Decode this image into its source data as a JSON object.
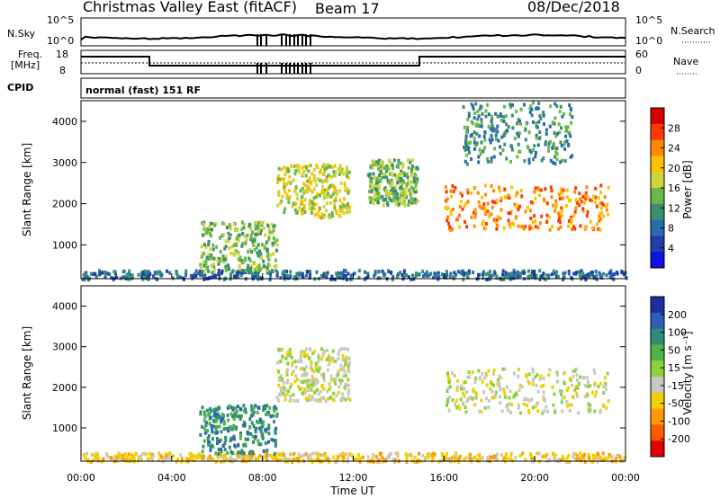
{
  "header": {
    "station": "Christmas Valley East (fitACF)",
    "beam": "Beam 17",
    "date": "08/Dec/2018"
  },
  "noise_panel": {
    "left_label": "N.Sky",
    "left_ticks": [
      "10^5",
      "10^0"
    ],
    "right_label": "N.Search",
    "right_ticks": [
      "10^5",
      "10^0"
    ]
  },
  "freq_panel": {
    "left_label_1": "Freq.",
    "left_label_2": "[MHz]",
    "left_ticks": [
      "18",
      "8"
    ],
    "right_label": "Nave",
    "right_ticks": [
      "60",
      "0"
    ]
  },
  "cpid": {
    "label": "CPID",
    "value": "normal (fast) 151 RF"
  },
  "chart_data": [
    {
      "type": "heatmap",
      "name": "power",
      "ylabel": "Slant Range [km]",
      "xlabel": "",
      "xlim": [
        0,
        24
      ],
      "ylim": [
        180,
        4500
      ],
      "yticks": [
        1000,
        2000,
        3000,
        4000
      ],
      "ytick_labels": [
        "1000",
        "2000",
        "3000",
        "4000"
      ],
      "colorbar_label": "Power [dB]",
      "colorbar_ticks": [
        "28",
        "24",
        "20",
        "16",
        "12",
        "8",
        "4"
      ],
      "colorbar_colors": [
        "#d40000",
        "#ff3a00",
        "#ff8a00",
        "#ffc000",
        "#cdd53c",
        "#6ab74a",
        "#3a8f6e",
        "#2a6da8",
        "#1f3ea8",
        "#1010e0"
      ],
      "features": [
        {
          "desc": "ground scatter band",
          "x": [
            0,
            24
          ],
          "y": [
            200,
            420
          ],
          "level": 8
        },
        {
          "desc": "early echoes",
          "x": [
            5.2,
            8.6
          ],
          "y": [
            400,
            1600
          ],
          "level": 14
        },
        {
          "desc": "mid echoes",
          "x": [
            8.6,
            11.8
          ],
          "y": [
            1700,
            3000
          ],
          "level": 18
        },
        {
          "desc": "arc echoes",
          "x": [
            12.6,
            14.8
          ],
          "y": [
            2000,
            3100
          ],
          "level": 12
        },
        {
          "desc": "main backscatter",
          "x": [
            16.0,
            23.2
          ],
          "y": [
            1400,
            2500
          ],
          "level": 24
        },
        {
          "desc": "high range sparse",
          "x": [
            16.8,
            21.6
          ],
          "y": [
            3000,
            4500
          ],
          "level": 10
        }
      ]
    },
    {
      "type": "heatmap",
      "name": "velocity",
      "ylabel": "Slant Range [km]",
      "xlabel": "Time UT",
      "xlim": [
        0,
        24
      ],
      "xticks": [
        0,
        4,
        8,
        12,
        16,
        20,
        24
      ],
      "xtick_labels": [
        "00:00",
        "04:00",
        "08:00",
        "12:00",
        "16:00",
        "20:00",
        "00:00"
      ],
      "ylim": [
        180,
        4500
      ],
      "yticks": [
        1000,
        2000,
        3000,
        4000
      ],
      "ytick_labels": [
        "1000",
        "2000",
        "3000",
        "4000"
      ],
      "colorbar_label": "Velocity [m s⁻¹]",
      "colorbar_ticks": [
        "200",
        "100",
        "50",
        "15",
        "-15",
        "-50",
        "-100",
        "-200"
      ],
      "colorbar_colors": [
        "#1c2f9e",
        "#2b5fb8",
        "#2f8c76",
        "#4fb34a",
        "#8cd23a",
        "#c8c8c0",
        "#f0d000",
        "#ff9a00",
        "#ff5a00",
        "#e00000"
      ],
      "features": [
        {
          "desc": "ground scatter band",
          "x": [
            0,
            24
          ],
          "y": [
            200,
            420
          ],
          "level": -15
        },
        {
          "desc": "early echoes",
          "x": [
            5.2,
            8.6
          ],
          "y": [
            400,
            1600
          ],
          "level": 150
        },
        {
          "desc": "mid echoes",
          "x": [
            8.6,
            11.8
          ],
          "y": [
            1700,
            3000
          ],
          "level": 0
        },
        {
          "desc": "main backscatter",
          "x": [
            16.0,
            23.2
          ],
          "y": [
            1400,
            2500
          ],
          "level": 0
        }
      ]
    }
  ]
}
